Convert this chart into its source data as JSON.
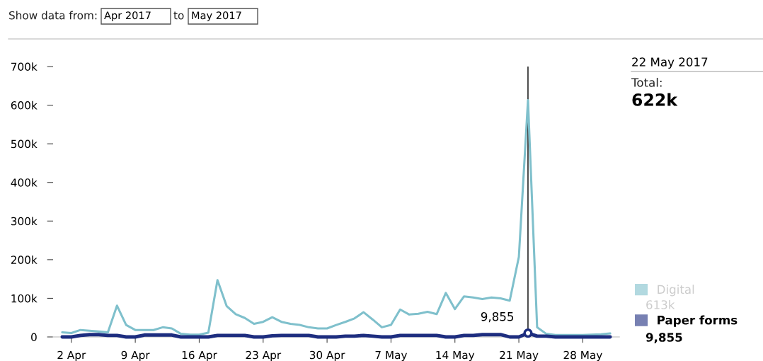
{
  "chart_data": {
    "type": "line",
    "x": [
      "2017-04-01",
      "2017-04-02",
      "2017-04-03",
      "2017-04-04",
      "2017-04-05",
      "2017-04-06",
      "2017-04-07",
      "2017-04-08",
      "2017-04-09",
      "2017-04-10",
      "2017-04-11",
      "2017-04-12",
      "2017-04-13",
      "2017-04-14",
      "2017-04-15",
      "2017-04-16",
      "2017-04-17",
      "2017-04-18",
      "2017-04-19",
      "2017-04-20",
      "2017-04-21",
      "2017-04-22",
      "2017-04-23",
      "2017-04-24",
      "2017-04-25",
      "2017-04-26",
      "2017-04-27",
      "2017-04-28",
      "2017-04-29",
      "2017-04-30",
      "2017-05-01",
      "2017-05-02",
      "2017-05-03",
      "2017-05-04",
      "2017-05-05",
      "2017-05-06",
      "2017-05-07",
      "2017-05-08",
      "2017-05-09",
      "2017-05-10",
      "2017-05-11",
      "2017-05-12",
      "2017-05-13",
      "2017-05-14",
      "2017-05-15",
      "2017-05-16",
      "2017-05-17",
      "2017-05-18",
      "2017-05-19",
      "2017-05-20",
      "2017-05-21",
      "2017-05-22",
      "2017-05-23",
      "2017-05-24",
      "2017-05-25",
      "2017-05-26",
      "2017-05-27",
      "2017-05-28",
      "2017-05-29",
      "2017-05-30",
      "2017-05-31"
    ],
    "series": [
      {
        "name": "Digital",
        "color": "#7fc0cc",
        "values": [
          12000,
          10000,
          18000,
          16000,
          14000,
          12000,
          81000,
          31000,
          18000,
          18000,
          18000,
          25000,
          22000,
          8000,
          6000,
          6000,
          11000,
          147000,
          80000,
          59000,
          49000,
          34000,
          39000,
          51000,
          39000,
          34000,
          31000,
          25000,
          22000,
          22000,
          31000,
          39000,
          48000,
          64000,
          45000,
          25000,
          31000,
          71000,
          58000,
          60000,
          65000,
          59000,
          114000,
          72000,
          105000,
          102000,
          98000,
          102000,
          100000,
          94000,
          207000,
          613000,
          25000,
          8000,
          5000,
          5000,
          5000,
          5000,
          6000,
          7000,
          9000
        ]
      },
      {
        "name": "Paper forms",
        "color": "#1d2d7f",
        "values": [
          0,
          0,
          4000,
          6000,
          6000,
          4000,
          4000,
          0,
          0,
          5000,
          5000,
          5000,
          5000,
          0,
          0,
          0,
          0,
          4000,
          4000,
          4000,
          4000,
          0,
          0,
          3000,
          4000,
          4000,
          4000,
          4000,
          0,
          0,
          0,
          2000,
          2000,
          4000,
          2000,
          0,
          0,
          4000,
          4000,
          4000,
          4000,
          4000,
          0,
          0,
          4000,
          4000,
          6000,
          6000,
          6000,
          0,
          0,
          9855,
          2000,
          2000,
          0,
          0,
          0,
          0,
          0,
          0,
          0
        ]
      }
    ],
    "xlim": [
      "2017-03-31",
      "2017-06-01"
    ],
    "xticks": [
      {
        "value": "2017-04-02",
        "label": "2 Apr"
      },
      {
        "value": "2017-04-09",
        "label": "9 Apr"
      },
      {
        "value": "2017-04-16",
        "label": "16 Apr"
      },
      {
        "value": "2017-04-23",
        "label": "23 Apr"
      },
      {
        "value": "2017-04-30",
        "label": "30 Apr"
      },
      {
        "value": "2017-05-07",
        "label": "7 May"
      },
      {
        "value": "2017-05-14",
        "label": "14 May"
      },
      {
        "value": "2017-05-21",
        "label": "21 May"
      },
      {
        "value": "2017-05-28",
        "label": "28 May"
      }
    ],
    "ylim": [
      0,
      700000
    ],
    "yticks": [
      0,
      {
        "value": 100000,
        "label": "100k"
      },
      {
        "value": 200000,
        "label": "200k"
      },
      {
        "value": 300000,
        "label": "300k"
      },
      {
        "value": 400000,
        "label": "400k"
      },
      {
        "value": 500000,
        "label": "500k"
      },
      {
        "value": 600000,
        "label": "600k"
      },
      {
        "value": 700000,
        "label": "700k"
      }
    ],
    "ref_lines": [
      {
        "axis": "x",
        "value": "2017-05-22",
        "label": "22 May 2017",
        "color": "#000000"
      }
    ],
    "annotations": [
      "Show data from:",
      "Apr 2017",
      "to",
      "May 2017",
      "Total:",
      "622k",
      "613k",
      "9,855",
      {
        "text": "9,855",
        "x": "2017-05-22",
        "y": 9855
      }
    ],
    "legend": "right",
    "grid": false
  }
}
